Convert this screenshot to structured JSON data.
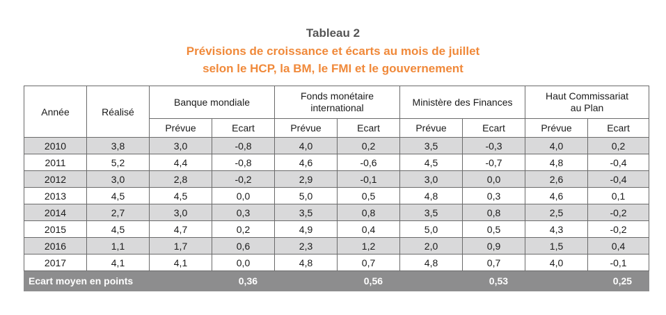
{
  "caption": {
    "label": "Tableau 2",
    "title_line1": "Prévisions de croissance et écarts au mois de juillet",
    "title_line2": "selon le HCP, la BM, le FMI et le gouvernement"
  },
  "table": {
    "col_year": "Année",
    "col_realise": "Réalisé",
    "groups": [
      {
        "line1": "Banque mondiale",
        "line2": ""
      },
      {
        "line1": "Fonds monétaire",
        "line2": "international"
      },
      {
        "line1": "Ministère des Finances",
        "line2": ""
      },
      {
        "line1": "Haut Commissariat",
        "line2": "au Plan"
      }
    ],
    "sub_prevue": "Prévue",
    "sub_ecart": "Ecart",
    "rows": [
      {
        "year": "2010",
        "realise": "3,8",
        "bm_p": "3,0",
        "bm_e": "-0,8",
        "fmi_p": "4,0",
        "fmi_e": "0,2",
        "mf_p": "3,5",
        "mf_e": "-0,3",
        "hcp_p": "4,0",
        "hcp_e": "0,2"
      },
      {
        "year": "2011",
        "realise": "5,2",
        "bm_p": "4,4",
        "bm_e": "-0,8",
        "fmi_p": "4,6",
        "fmi_e": "-0,6",
        "mf_p": "4,5",
        "mf_e": "-0,7",
        "hcp_p": "4,8",
        "hcp_e": "-0,4"
      },
      {
        "year": "2012",
        "realise": "3,0",
        "bm_p": "2,8",
        "bm_e": "-0,2",
        "fmi_p": "2,9",
        "fmi_e": "-0,1",
        "mf_p": "3,0",
        "mf_e": "0,0",
        "hcp_p": "2,6",
        "hcp_e": "-0,4"
      },
      {
        "year": "2013",
        "realise": "4,5",
        "bm_p": "4,5",
        "bm_e": "0,0",
        "fmi_p": "5,0",
        "fmi_e": "0,5",
        "mf_p": "4,8",
        "mf_e": "0,3",
        "hcp_p": "4,6",
        "hcp_e": "0,1"
      },
      {
        "year": "2014",
        "realise": "2,7",
        "bm_p": "3,0",
        "bm_e": "0,3",
        "fmi_p": "3,5",
        "fmi_e": "0,8",
        "mf_p": "3,5",
        "mf_e": "0,8",
        "hcp_p": "2,5",
        "hcp_e": "-0,2"
      },
      {
        "year": "2015",
        "realise": "4,5",
        "bm_p": "4,7",
        "bm_e": "0,2",
        "fmi_p": "4,9",
        "fmi_e": "0,4",
        "mf_p": "5,0",
        "mf_e": "0,5",
        "hcp_p": "4,3",
        "hcp_e": "-0,2"
      },
      {
        "year": "2016",
        "realise": "1,1",
        "bm_p": "1,7",
        "bm_e": "0,6",
        "fmi_p": "2,3",
        "fmi_e": "1,2",
        "mf_p": "2,0",
        "mf_e": "0,9",
        "hcp_p": "1,5",
        "hcp_e": "0,4"
      },
      {
        "year": "2017",
        "realise": "4,1",
        "bm_p": "4,1",
        "bm_e": "0,0",
        "fmi_p": "4,8",
        "fmi_e": "0,7",
        "mf_p": "4,8",
        "mf_e": "0,7",
        "hcp_p": "4,0",
        "hcp_e": "-0,1"
      }
    ],
    "footer": {
      "label": "Ecart moyen en points",
      "bm": "0,36",
      "fmi": "0,56",
      "mf": "0,53",
      "hcp": "0,25"
    }
  },
  "colors": {
    "title_accent": "#f0893a",
    "label_gray": "#555555",
    "row_shade": "#d9d9da",
    "footer_bg": "#8d8d8e"
  }
}
